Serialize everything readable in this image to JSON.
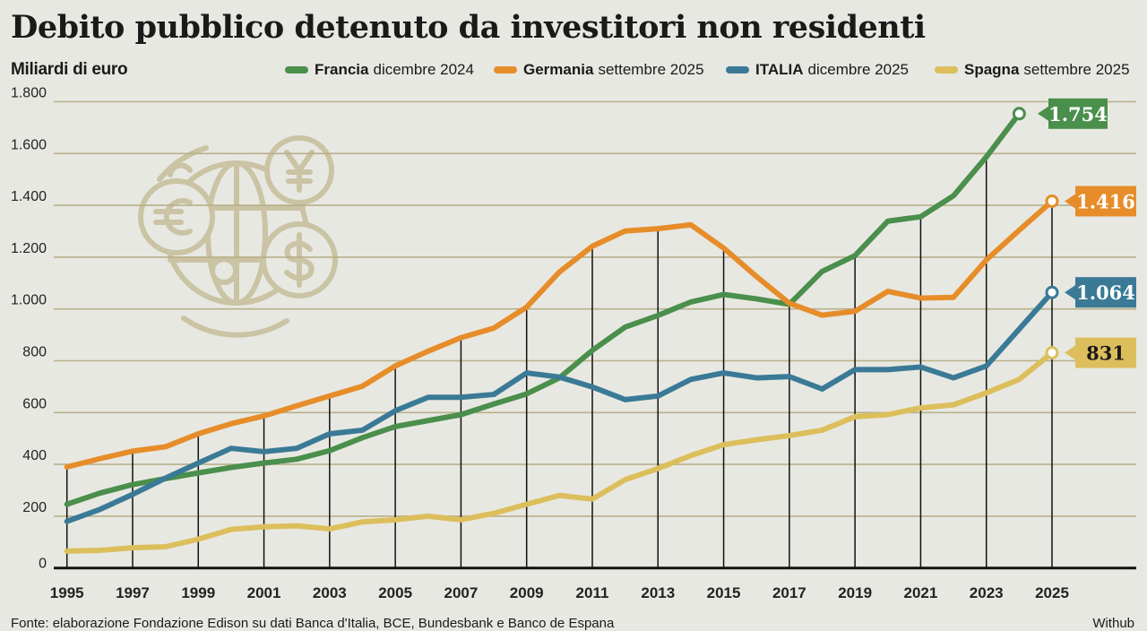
{
  "title": "Debito pubblico detenuto da investitori non residenti",
  "unit_label": "Miliardi di euro",
  "source": "Fonte: elaborazione Fondazione Edison su dati Banca d'Italia, BCE, Bundesbank e Banco de Espana",
  "credit": "Withub",
  "icon": "globe-with-currency-coins-icon",
  "chart_data": {
    "type": "line",
    "title": "Debito pubblico detenuto da investitori non residenti",
    "ylabel": "Miliardi di euro",
    "ylim": [
      0,
      1800
    ],
    "yticks": [
      0,
      200,
      400,
      600,
      800,
      1000,
      1200,
      1400,
      1600,
      1800
    ],
    "ytick_labels": [
      "0",
      "200",
      "400",
      "600",
      "800",
      "1.000",
      "1.200",
      "1.400",
      "1.600",
      "1.800"
    ],
    "xlim": [
      1995,
      2025
    ],
    "xtick_labels": [
      "1995",
      "1997",
      "1999",
      "2001",
      "2003",
      "2005",
      "2007",
      "2009",
      "2011",
      "2013",
      "2015",
      "2017",
      "2019",
      "2021",
      "2023",
      "2025"
    ],
    "grid": "horizontal",
    "legend_position": "top",
    "x": [
      1995,
      1996,
      1997,
      1998,
      1999,
      2000,
      2001,
      2002,
      2003,
      2004,
      2005,
      2006,
      2007,
      2008,
      2009,
      2010,
      2011,
      2012,
      2013,
      2014,
      2015,
      2016,
      2017,
      2018,
      2019,
      2020,
      2021,
      2022,
      2023,
      2024,
      2025
    ],
    "series": [
      {
        "name": "Francia",
        "period": "dicembre 2024",
        "color": "#4a8f4c",
        "end_label": "1.754",
        "values": [
          246,
          289,
          322,
          345,
          367,
          388,
          405,
          420,
          453,
          503,
          546,
          569,
          592,
          633,
          672,
          734,
          840,
          930,
          975,
          1027,
          1056,
          1039,
          1018,
          1145,
          1206,
          1339,
          1356,
          1437,
          1587,
          1754,
          null
        ]
      },
      {
        "name": "Germania",
        "period": "settembre 2025",
        "color": "#e68d2a",
        "end_label": "1.416",
        "values": [
          390,
          422,
          451,
          468,
          518,
          557,
          587,
          626,
          664,
          702,
          780,
          837,
          889,
          926,
          1007,
          1143,
          1242,
          1301,
          1310,
          1325,
          1235,
          1125,
          1022,
          976,
          991,
          1068,
          1042,
          1045,
          1189,
          1304,
          1416
        ]
      },
      {
        "name": "ITALIA",
        "period": "dicembre 2025",
        "color": "#3a7a96",
        "end_label": "1.064",
        "values": [
          180,
          226,
          284,
          347,
          405,
          462,
          449,
          462,
          518,
          532,
          607,
          659,
          659,
          670,
          753,
          737,
          699,
          650,
          664,
          728,
          753,
          734,
          739,
          691,
          766,
          766,
          776,
          734,
          780,
          922,
          1064
        ]
      },
      {
        "name": "Spagna",
        "period": "settembre 2025",
        "color": "#dcbf5c",
        "end_label": "831",
        "values": [
          65,
          68,
          78,
          82,
          111,
          149,
          159,
          163,
          151,
          178,
          186,
          200,
          186,
          211,
          246,
          280,
          266,
          341,
          384,
          434,
          476,
          495,
          511,
          532,
          584,
          592,
          618,
          630,
          676,
          728,
          831
        ]
      }
    ]
  }
}
